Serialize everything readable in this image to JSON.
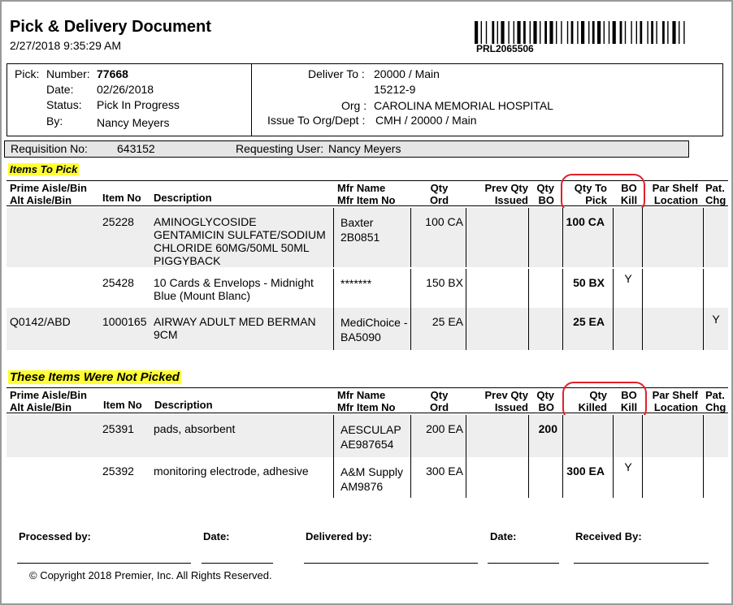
{
  "document": {
    "title": "Pick & Delivery Document",
    "timestamp": "2/27/2018 9:35:29 AM",
    "barcode_id": "PRL2065506"
  },
  "header": {
    "pick_label": "Pick:",
    "number_label": "Number:",
    "number_value": "77668",
    "date_label": "Date:",
    "date_value": "02/26/2018",
    "status_label": "Status:",
    "status_value": "Pick In Progress",
    "by_label": "By:",
    "by_value": "Nancy Meyers",
    "deliver_to_label": "Deliver To :",
    "deliver_to_value": "20000 / Main",
    "deliver_to_code": "15212-9",
    "org_label": "Org :",
    "org_value": "CAROLINA MEMORIAL HOSPITAL",
    "issue_to_label": "Issue To Org/Dept :",
    "issue_to_value": "CMH  / 20000 / Main"
  },
  "requisition": {
    "req_label": "Requisition No:",
    "req_value": "643152",
    "user_label": "Requesting User:",
    "user_value": "Nancy Meyers"
  },
  "columns": {
    "prime_aisle": "Prime Aisle/Bin",
    "alt_aisle": "Alt Aisle/Bin",
    "item_no": "Item No",
    "description": "Description",
    "mfr_name": "Mfr Name",
    "mfr_item_no": "Mfr Item No",
    "qty_ord_1": "Qty",
    "qty_ord_2": "Ord",
    "prev_qty_1": "Prev Qty",
    "prev_qty_2": "Issued",
    "qty_bo_1": "Qty",
    "qty_bo_2": "BO",
    "qty_to_pick_1": "Qty To",
    "qty_to_pick_2": "Pick",
    "qty_killed_1": "Qty",
    "qty_killed_2": "Killed",
    "bo_kill_1": "BO",
    "bo_kill_2": "Kill",
    "par_shelf_1": "Par Shelf",
    "par_shelf_2": "Location",
    "pat_chg_1": "Pat.",
    "pat_chg_2": "Chg"
  },
  "items_to_pick": {
    "title": "Items To Pick",
    "rows": [
      {
        "aisle": "",
        "item_no": "25228",
        "desc": [
          "AMINOGLYCOSIDE",
          "GENTAMICIN SULFATE/SODIUM",
          "CHLORIDE 60MG/50ML 50ML",
          "PIGGYBACK"
        ],
        "mfr": [
          "Baxter",
          "2B0851"
        ],
        "qty_ord": "100 CA",
        "prev": "",
        "bo": "",
        "qty": "100 CA",
        "bo_kill": "",
        "par": "",
        "pat": ""
      },
      {
        "aisle": "",
        "item_no": "25428",
        "desc": [
          "10 Cards & Envelops - Midnight",
          "Blue (Mount Blanc)"
        ],
        "mfr": [
          "*******"
        ],
        "qty_ord": "150 BX",
        "prev": "",
        "bo": "",
        "qty": "50 BX",
        "bo_kill": "Y",
        "par": "",
        "pat": ""
      },
      {
        "aisle": "Q0142/ABD",
        "item_no": "1000165",
        "desc": [
          "AIRWAY ADULT MED BERMAN",
          "9CM"
        ],
        "mfr": [
          "MediChoice -",
          "BA5090"
        ],
        "qty_ord": "25 EA",
        "prev": "",
        "bo": "",
        "qty": "25 EA",
        "bo_kill": "",
        "par": "",
        "pat": "Y"
      }
    ]
  },
  "not_picked": {
    "title": "These Items Were Not Picked",
    "rows": [
      {
        "aisle": "",
        "item_no": "25391",
        "desc": [
          "pads, absorbent"
        ],
        "mfr": [
          "AESCULAP",
          "AE987654"
        ],
        "qty_ord": "200 EA",
        "prev": "",
        "bo": "200",
        "qty": "",
        "bo_kill": "",
        "par": "",
        "pat": ""
      },
      {
        "aisle": "",
        "item_no": "25392",
        "desc": [
          "monitoring electrode, adhesive"
        ],
        "mfr": [
          "A&M Supply",
          "AM9876"
        ],
        "qty_ord": "300 EA",
        "prev": "",
        "bo": "",
        "qty": "300 EA",
        "bo_kill": "Y",
        "par": "",
        "pat": ""
      }
    ]
  },
  "signatures": {
    "processed_by": "Processed by:",
    "date1": "Date:",
    "delivered_by": "Delivered by:",
    "date2": "Date:",
    "received_by": "Received By:"
  },
  "footer": {
    "copyright": "© Copyright 2018 Premier, Inc. All Rights Reserved."
  },
  "colors": {
    "highlight": "#ffff33",
    "circle": "#e0202a",
    "stripe": "#eeeeee"
  }
}
